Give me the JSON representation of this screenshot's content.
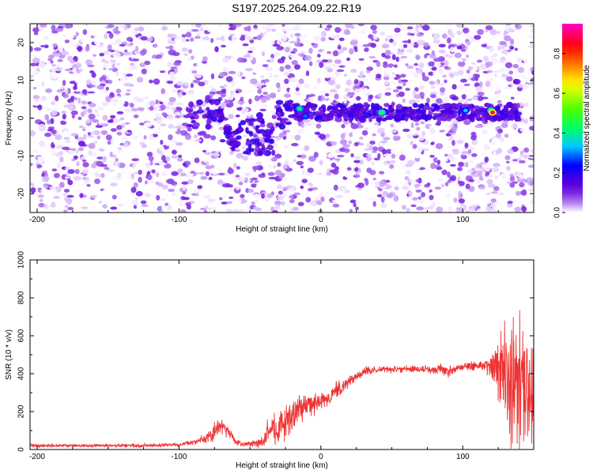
{
  "title": "S197.2025.264.09.22.R19",
  "chart_data": [
    {
      "type": "heatmap",
      "xlabel": "Height of straight line (km)",
      "ylabel": "Frequency (Hz)",
      "xlim": [
        -205,
        150
      ],
      "ylim": [
        -25,
        25
      ],
      "x_ticks": [
        -200,
        -100,
        0,
        100
      ],
      "y_ticks": [
        -20,
        -10,
        0,
        10,
        20
      ],
      "colorbar": {
        "label": "Normalized spectral amplitude",
        "range": [
          0,
          0.95
        ],
        "ticks": [
          "0.0",
          "0.2",
          "0.4",
          "0.6",
          "0.8"
        ],
        "colormap": "rainbow"
      },
      "grid": false,
      "peaks": [
        {
          "x": -15,
          "y": 2.5,
          "value": 0.45
        },
        {
          "x": -11,
          "y": 0.5,
          "value": 0.3
        },
        {
          "x": 43,
          "y": 1.5,
          "value": 0.5
        },
        {
          "x": 102,
          "y": 2,
          "value": 0.35
        },
        {
          "x": 120,
          "y": 2,
          "value": 0.55
        },
        {
          "x": 121,
          "y": 1.5,
          "value": 0.95
        }
      ]
    },
    {
      "type": "line",
      "xlabel": "Height of straight line (km)",
      "ylabel": "SNR (10 * v/v)",
      "xlim": [
        -205,
        150
      ],
      "ylim": [
        0,
        1000
      ],
      "x_ticks": [
        -200,
        -100,
        0,
        100
      ],
      "y_ticks": [
        0,
        200,
        400,
        600,
        800,
        1000
      ],
      "grid": false,
      "series": [
        {
          "color": "#ee3333",
          "x": [
            -205,
            -180,
            -160,
            -140,
            -120,
            -100,
            -90,
            -80,
            -75,
            -70,
            -65,
            -60,
            -55,
            -50,
            -45,
            -40,
            -38,
            -35,
            -30,
            -25,
            -20,
            -15,
            -10,
            -5,
            0,
            5,
            10,
            15,
            20,
            25,
            30,
            40,
            50,
            60,
            70,
            80,
            85,
            90,
            95,
            100,
            105,
            110,
            115,
            120,
            125,
            130,
            135,
            140,
            145,
            150
          ],
          "values": [
            20,
            20,
            20,
            20,
            22,
            25,
            40,
            60,
            90,
            130,
            90,
            40,
            30,
            30,
            30,
            40,
            90,
            100,
            120,
            140,
            180,
            220,
            230,
            240,
            250,
            270,
            300,
            330,
            360,
            390,
            410,
            420,
            425,
            425,
            425,
            420,
            430,
            410,
            430,
            435,
            440,
            440,
            445,
            440,
            430,
            400,
            380,
            350,
            300,
            300
          ],
          "noise": [
            10,
            10,
            10,
            10,
            10,
            10,
            15,
            30,
            50,
            60,
            40,
            15,
            15,
            15,
            20,
            40,
            80,
            80,
            90,
            100,
            90,
            80,
            70,
            60,
            50,
            50,
            50,
            40,
            30,
            25,
            25,
            20,
            20,
            20,
            20,
            25,
            35,
            30,
            35,
            20,
            25,
            25,
            30,
            60,
            180,
            300,
            350,
            350,
            300,
            250
          ]
        }
      ]
    }
  ]
}
